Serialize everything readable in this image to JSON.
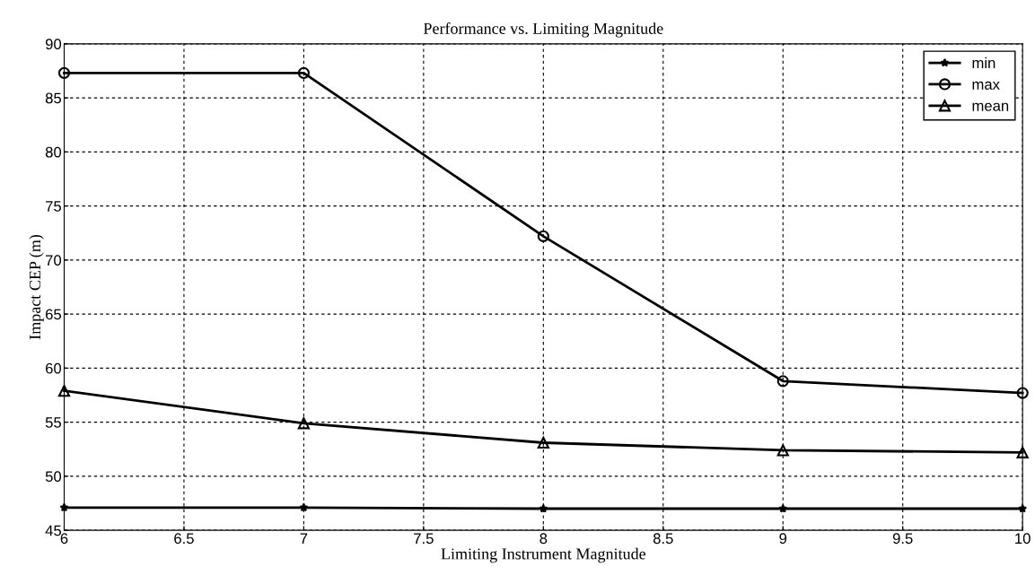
{
  "chart_data": {
    "type": "line",
    "title": "Performance vs. Limiting Magnitude",
    "xlabel": "Limiting Instrument Magnitude",
    "ylabel": "Impact CEP (m)",
    "x": [
      6,
      7,
      8,
      9,
      10
    ],
    "series": [
      {
        "name": "min",
        "color": "#000000",
        "marker": "star",
        "values": [
          47.1,
          47.1,
          47.0,
          47.0,
          47.0
        ]
      },
      {
        "name": "max",
        "color": "#000000",
        "marker": "circle",
        "values": [
          87.3,
          87.3,
          72.2,
          58.8,
          57.7
        ]
      },
      {
        "name": "mean",
        "color": "#000000",
        "marker": "triangle",
        "values": [
          57.9,
          54.9,
          53.1,
          52.4,
          52.2
        ]
      }
    ],
    "xlim": [
      6,
      10
    ],
    "xticks": [
      6,
      6.5,
      7,
      7.5,
      8,
      8.5,
      9,
      9.5,
      10
    ],
    "ylim": [
      45,
      90
    ],
    "yticks": [
      45,
      50,
      55,
      60,
      65,
      70,
      75,
      80,
      85,
      90
    ],
    "grid": true,
    "legend": "top right",
    "line_style": "solid"
  }
}
